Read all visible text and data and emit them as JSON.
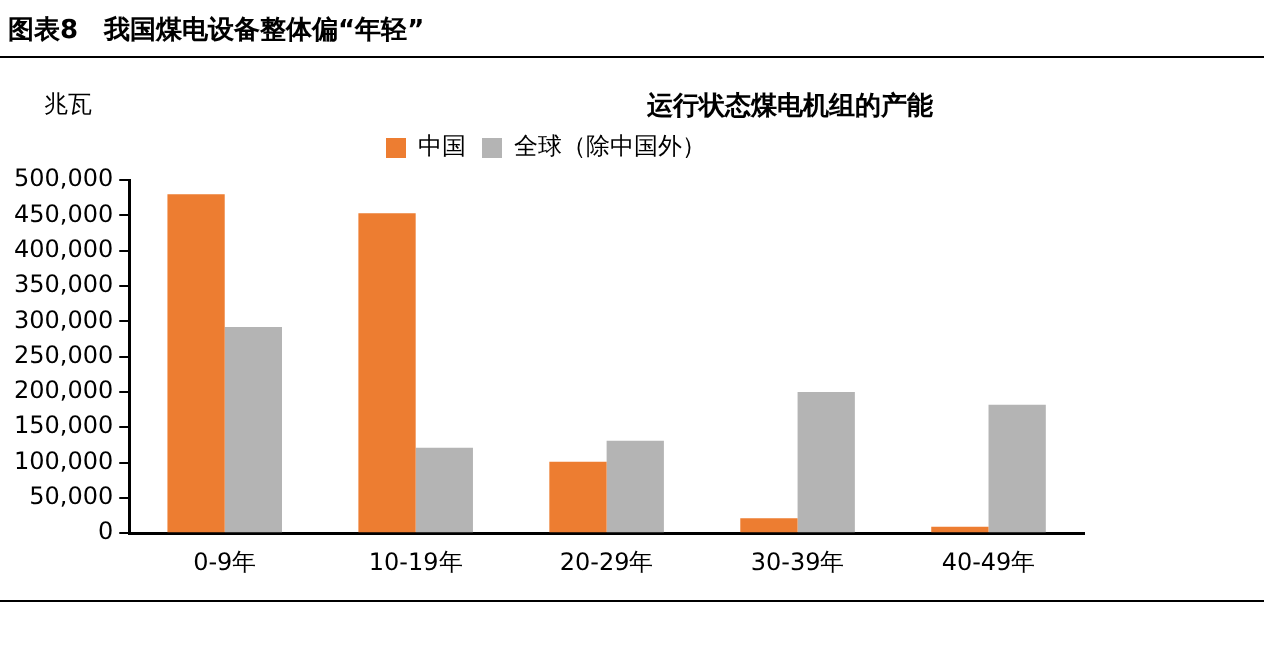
{
  "chart_data": {
    "type": "bar",
    "title": "运行状态煤电机组的产能",
    "ylabel": "兆瓦",
    "annotations": [
      "图表8　我国煤电设备整体偏“年轻”"
    ],
    "categories": [
      "0-9年",
      "10-19年",
      "20-29年",
      "30-39年",
      "40-49年"
    ],
    "series": [
      {
        "name": "中国",
        "color": "#ed7d31",
        "values": [
          480000,
          453000,
          101000,
          21000,
          9000
        ]
      },
      {
        "name": "全球（除中国外）",
        "color": "#b4b4b4",
        "values": [
          292000,
          121000,
          131000,
          200000,
          182000
        ]
      }
    ],
    "ylim": [
      0,
      500000
    ],
    "yticks": [
      0,
      {
        "value": 50000,
        "label": "50,000"
      },
      {
        "value": 100000,
        "label": "100,000"
      },
      {
        "value": 150000,
        "label": "150,000"
      },
      {
        "value": 200000,
        "label": "200,000"
      },
      {
        "value": 250000,
        "label": "250,000"
      },
      {
        "value": 300000,
        "label": "300,000"
      },
      {
        "value": 350000,
        "label": "350,000"
      },
      {
        "value": 400000,
        "label": "400,000"
      },
      {
        "value": 450000,
        "label": "450,000"
      },
      {
        "value": 500000,
        "label": "500,000"
      }
    ],
    "grid": false,
    "legend": "top"
  }
}
